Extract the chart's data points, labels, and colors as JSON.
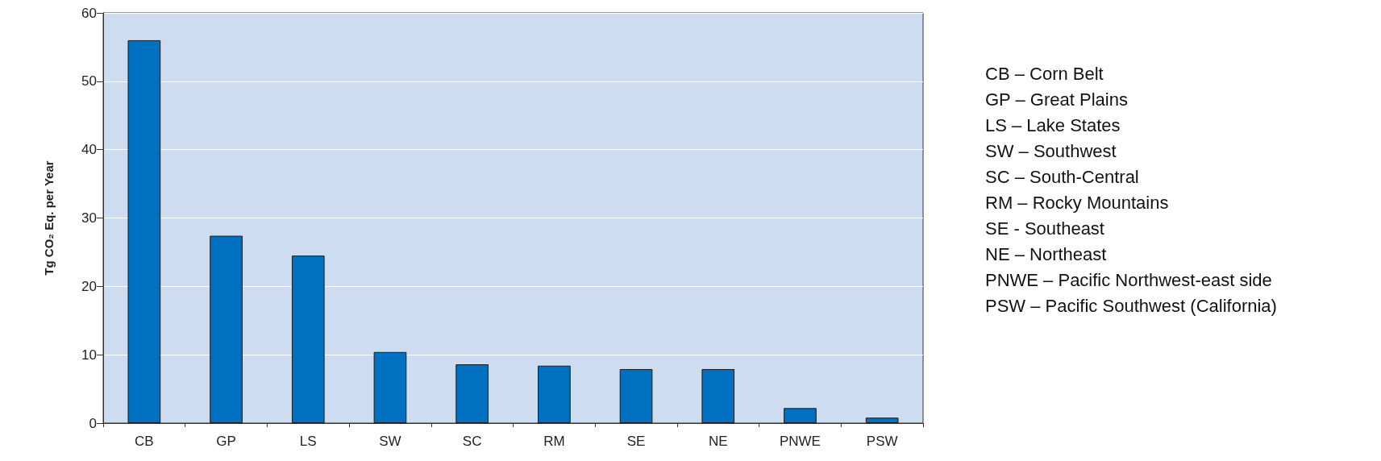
{
  "chart_data": {
    "type": "bar",
    "ylabel": "Tg CO₂ Eq. per Year",
    "categories": [
      "CB",
      "GP",
      "LS",
      "SW",
      "SC",
      "RM",
      "SE",
      "NE",
      "PNWE",
      "PSW"
    ],
    "values": [
      56,
      27.4,
      24.5,
      10.4,
      8.6,
      8.4,
      7.9,
      7.9,
      2.2,
      0.8
    ],
    "color": "#0070c0",
    "ylim": [
      0,
      60
    ],
    "yticks": [
      0,
      10,
      20,
      30,
      40,
      50,
      60
    ],
    "grid": "y",
    "annotations": [
      "CB – Corn Belt",
      "GP – Great Plains",
      "LS – Lake States",
      "SW – Southwest",
      "SC – South-Central",
      "RM – Rocky Mountains",
      "SE - Southeast",
      "NE – Northeast",
      "PNWE – Pacific Northwest-east side",
      "PSW – Pacific Southwest (California)"
    ]
  }
}
